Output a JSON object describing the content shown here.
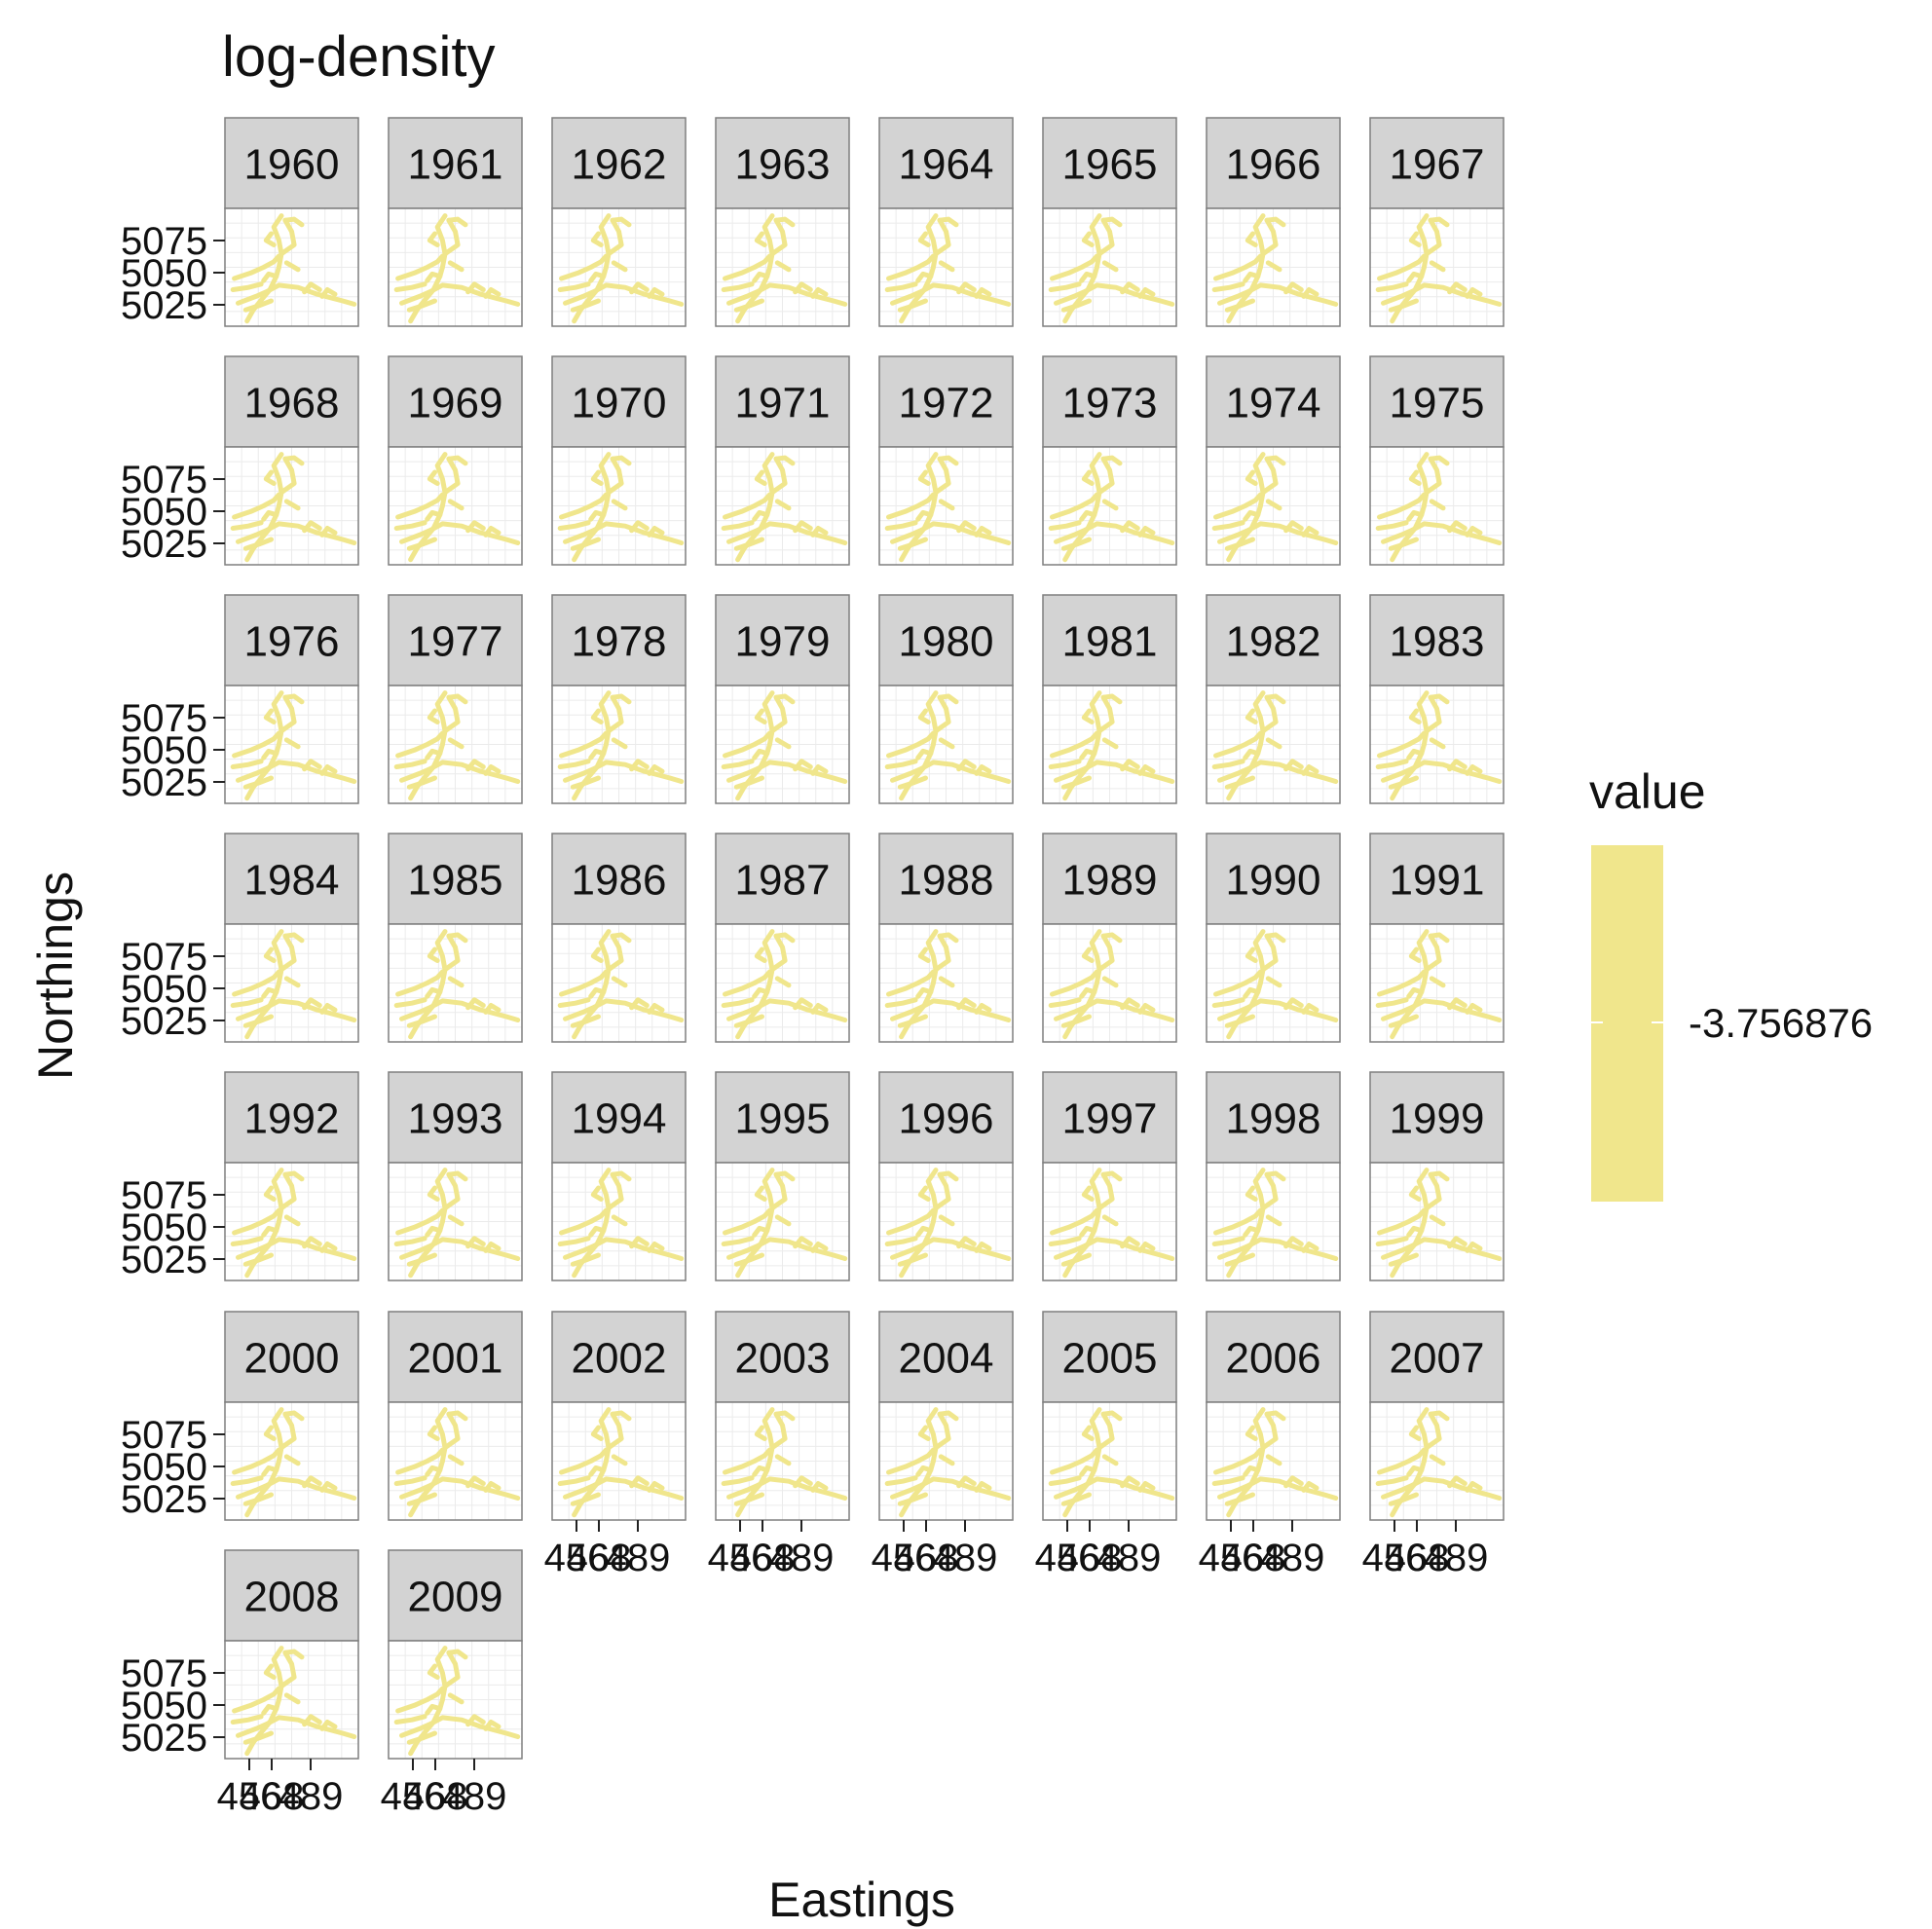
{
  "chart_data": {
    "type": "heatmap",
    "title": "log-density",
    "xlabel": "Eastings",
    "ylabel": "Northings",
    "panels": [
      "1960",
      "1961",
      "1962",
      "1963",
      "1964",
      "1965",
      "1966",
      "1967",
      "1968",
      "1969",
      "1970",
      "1971",
      "1972",
      "1973",
      "1974",
      "1975",
      "1976",
      "1977",
      "1978",
      "1979",
      "1980",
      "1981",
      "1982",
      "1983",
      "1984",
      "1985",
      "1986",
      "1987",
      "1988",
      "1989",
      "1990",
      "1991",
      "1992",
      "1993",
      "1994",
      "1995",
      "1996",
      "1997",
      "1998",
      "1999",
      "2000",
      "2001",
      "2002",
      "2003",
      "2004",
      "2005",
      "2006",
      "2007",
      "2008",
      "2009"
    ],
    "y_ticks": [
      "5025",
      "5050",
      "5075"
    ],
    "x_ticks": [
      "456",
      "468",
      "489"
    ],
    "legend": {
      "title": "value",
      "label": "-3.756876",
      "color": "#f0e68c",
      "position": "right"
    },
    "colors": {
      "fill": "#f0e68c",
      "strip": "#d3d3d3",
      "panel_border": "#7f7f7f",
      "grid": "#ebebeb"
    },
    "grid": true
  }
}
